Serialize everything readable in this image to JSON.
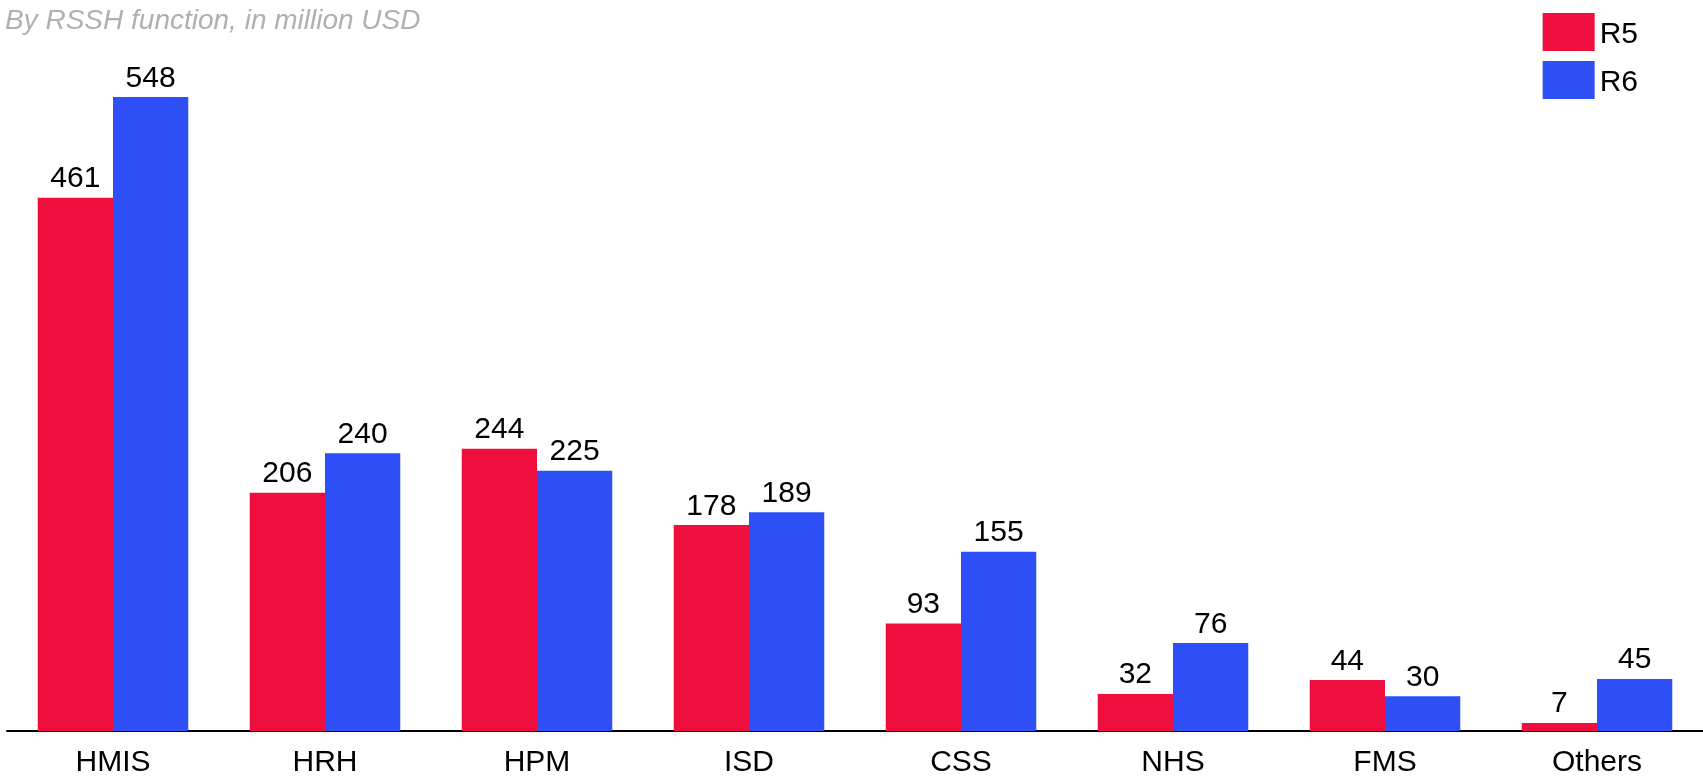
{
  "chart_data": {
    "type": "bar",
    "subtitle": "By RSSH function, in million USD",
    "categories": [
      "HMIS",
      "HRH",
      "HPM",
      "ISD",
      "CSS",
      "NHS",
      "FMS",
      "Others"
    ],
    "series": [
      {
        "name": "R5",
        "color": "#ee0f3f",
        "values": [
          461,
          206,
          244,
          178,
          93,
          32,
          44,
          7
        ]
      },
      {
        "name": "R6",
        "color": "#2e4ff5",
        "values": [
          548,
          240,
          225,
          189,
          155,
          76,
          30,
          45
        ]
      }
    ],
    "data_labels": true,
    "legend": "top right",
    "grid": false
  }
}
